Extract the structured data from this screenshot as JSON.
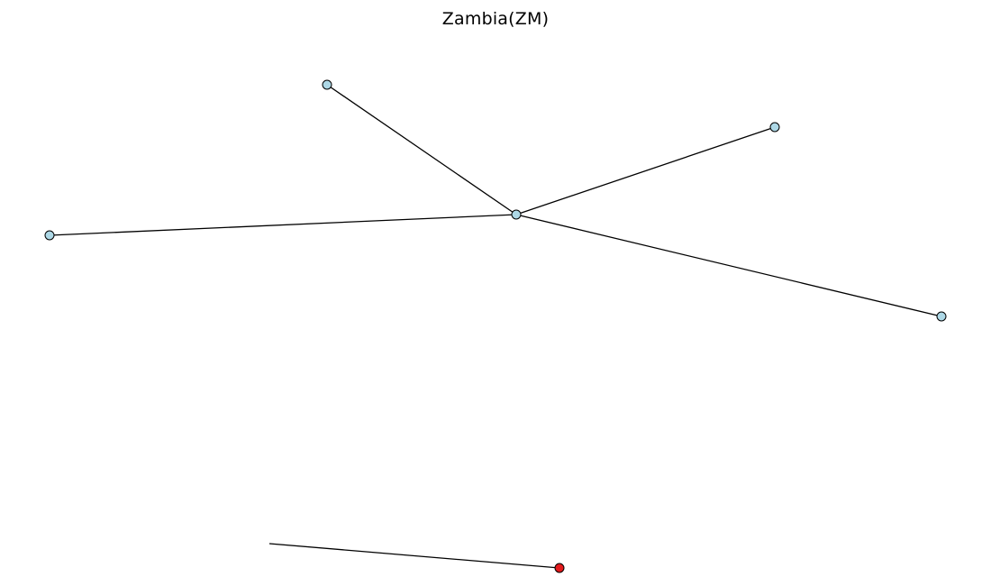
{
  "title": "Zambia(ZM)",
  "colors": {
    "edge": "#000000",
    "node_fill": "#add8e6",
    "highlight_fill": "#e31a1c",
    "node_stroke": "#000000"
  },
  "nodes": [
    {
      "id": "hub",
      "highlighted": false
    },
    {
      "id": "node-north",
      "highlighted": false
    },
    {
      "id": "node-northeast",
      "highlighted": false
    },
    {
      "id": "node-west",
      "highlighted": false
    },
    {
      "id": "node-east",
      "highlighted": false
    },
    {
      "id": "node-highlighted",
      "highlighted": true
    }
  ],
  "edges": [
    {
      "from": "hub",
      "to": "node-north"
    },
    {
      "from": "hub",
      "to": "node-northeast"
    },
    {
      "from": "hub",
      "to": "node-west"
    },
    {
      "from": "hub",
      "to": "node-east"
    },
    {
      "from": "node-highlighted",
      "to": "edge-stub"
    }
  ]
}
